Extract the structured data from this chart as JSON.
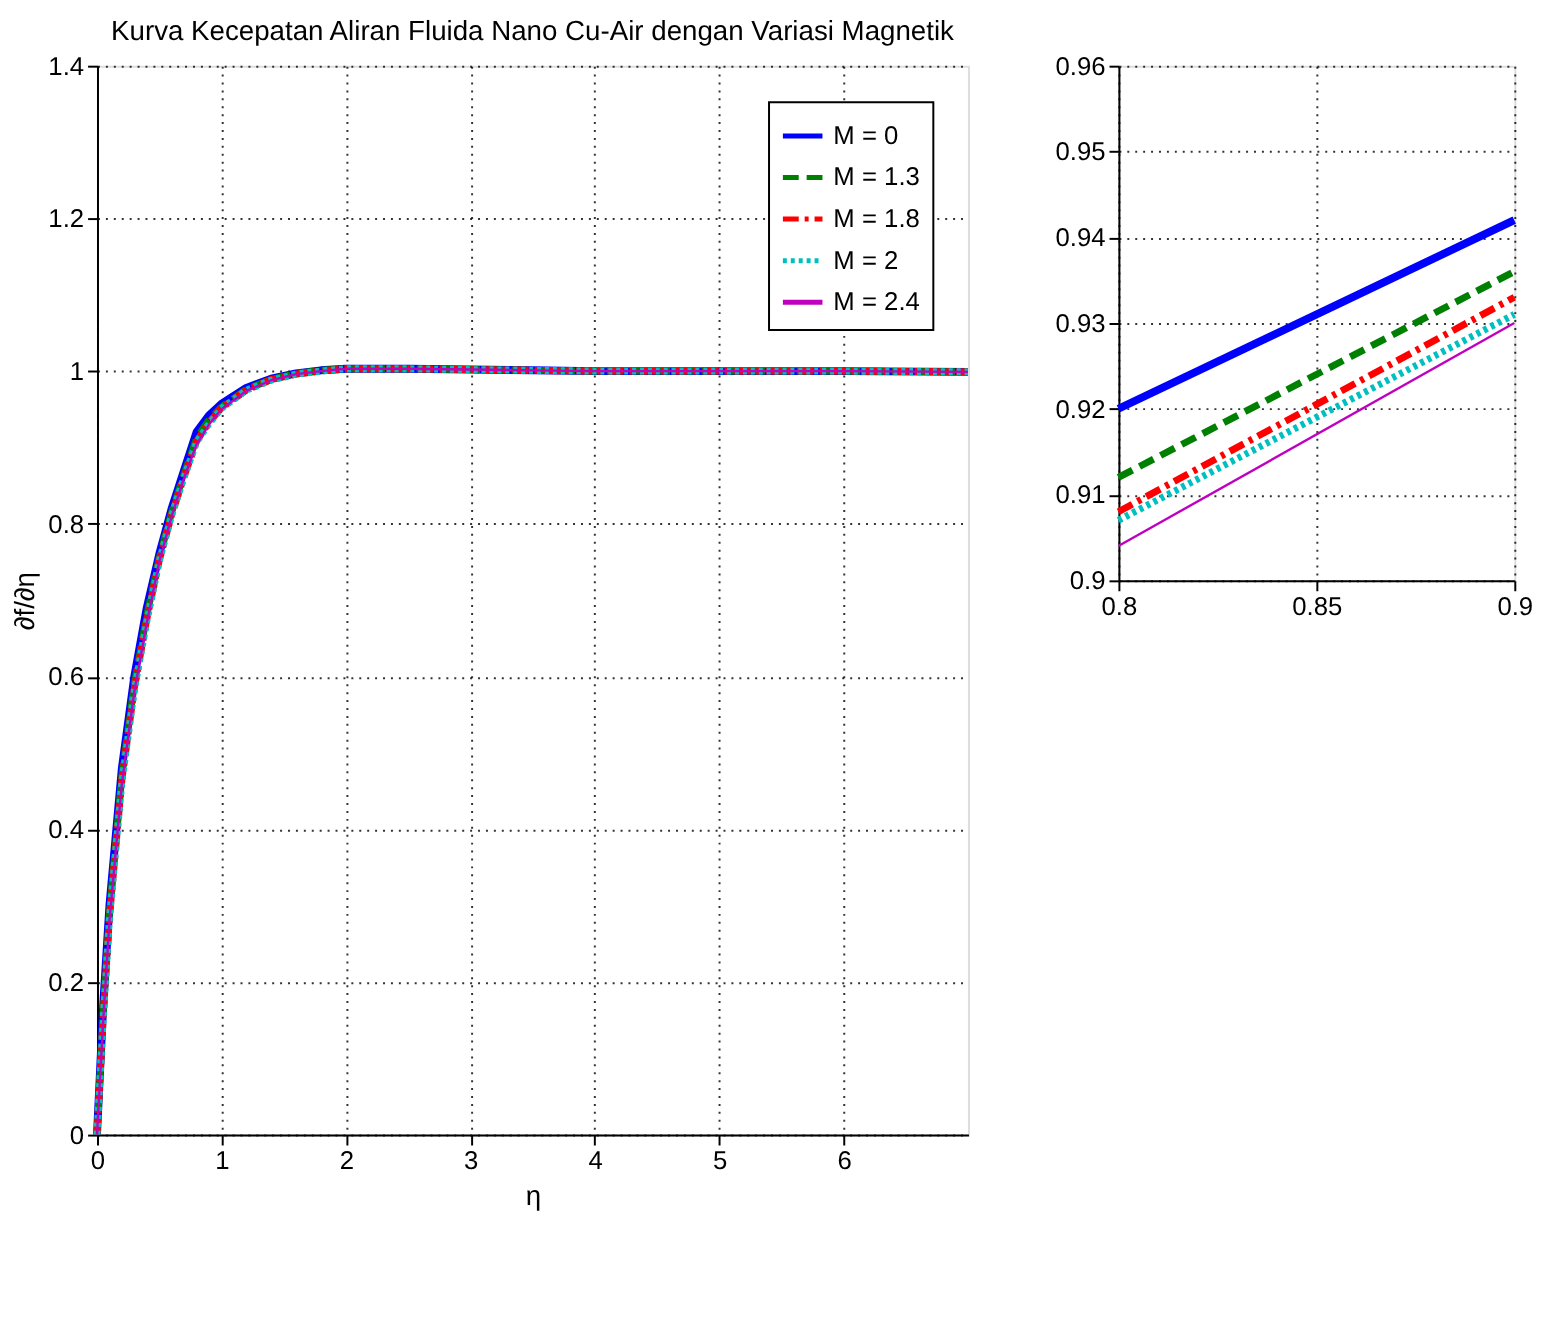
{
  "chart_data": [
    {
      "type": "line",
      "title": "Kurva Kecepatan Aliran Fluida Nano Cu-Air dengan Variasi Magnetik",
      "xlabel": "η",
      "ylabel": "∂f/∂η",
      "x": [
        0,
        0.05,
        0.1,
        0.2,
        0.3,
        0.4,
        0.5,
        0.6,
        0.7,
        0.8,
        0.9,
        1,
        1.2,
        1.4,
        1.6,
        1.8,
        2,
        2.5,
        3,
        3.5,
        4,
        5,
        6,
        7
      ],
      "xlim": [
        0,
        7
      ],
      "xticks": [
        0,
        1,
        2,
        3,
        4,
        5,
        6
      ],
      "ylim": [
        0,
        1.4
      ],
      "yticks": [
        0,
        0.2,
        0.4,
        0.6,
        0.8,
        1,
        1.2,
        1.4
      ],
      "grid": true,
      "legend": "top right",
      "series": [
        {
          "name": "M = 0",
          "color": "#0000ff",
          "line_style": "solid",
          "values": [
            0,
            0.17,
            0.3,
            0.48,
            0.6,
            0.69,
            0.76,
            0.82,
            0.87,
            0.92,
            0.942,
            0.957,
            0.978,
            0.99,
            0.997,
            1.001,
            1.003,
            1.003,
            1.002,
            1.001,
            1.0,
            1.0,
            1.0,
            0.999
          ]
        },
        {
          "name": "M = 1.3",
          "color": "#008000",
          "line_style": "dashed",
          "values": [
            0,
            0.16,
            0.29,
            0.47,
            0.59,
            0.68,
            0.755,
            0.815,
            0.865,
            0.912,
            0.936,
            0.953,
            0.976,
            0.989,
            0.997,
            1.001,
            1.003,
            1.003,
            1.002,
            1.001,
            1.0,
            1.0,
            1.0,
            0.999
          ]
        },
        {
          "name": "M = 1.8",
          "color": "#ff0000",
          "line_style": "dashdot",
          "values": [
            0,
            0.155,
            0.285,
            0.465,
            0.585,
            0.675,
            0.752,
            0.812,
            0.862,
            0.908,
            0.933,
            0.952,
            0.975,
            0.989,
            0.996,
            1.0,
            1.003,
            1.003,
            1.002,
            1.001,
            1.0,
            1.0,
            1.0,
            0.999
          ]
        },
        {
          "name": "M = 2",
          "color": "#00bfbf",
          "line_style": "dotted",
          "values": [
            0,
            0.152,
            0.283,
            0.462,
            0.582,
            0.672,
            0.751,
            0.811,
            0.861,
            0.907,
            0.931,
            0.951,
            0.975,
            0.988,
            0.996,
            1.0,
            1.003,
            1.003,
            1.002,
            1.001,
            1.0,
            1.0,
            1.0,
            0.999
          ]
        },
        {
          "name": "M = 2.4",
          "color": "#bf00bf",
          "line_style": "solid",
          "values": [
            0,
            0.15,
            0.28,
            0.46,
            0.58,
            0.67,
            0.75,
            0.81,
            0.86,
            0.904,
            0.93,
            0.95,
            0.974,
            0.988,
            0.996,
            1.0,
            1.003,
            1.003,
            1.002,
            1.001,
            1.0,
            1.0,
            1.0,
            0.999
          ]
        }
      ]
    },
    {
      "type": "line",
      "x": [
        0.8,
        0.9
      ],
      "xlim": [
        0.8,
        0.9
      ],
      "xticks": [
        0.8,
        0.85,
        0.9
      ],
      "ylim": [
        0.9,
        0.96
      ],
      "yticks": [
        0.9,
        0.91,
        0.92,
        0.93,
        0.94,
        0.95,
        0.96
      ],
      "grid": true,
      "series": [
        {
          "color": "#0000ff",
          "line_style": "solid",
          "values": [
            0.92,
            0.942
          ]
        },
        {
          "color": "#008000",
          "line_style": "dashed",
          "values": [
            0.912,
            0.936
          ]
        },
        {
          "color": "#ff0000",
          "line_style": "dashdot",
          "values": [
            0.908,
            0.933
          ]
        },
        {
          "color": "#00bfbf",
          "line_style": "dotted",
          "values": [
            0.907,
            0.931
          ]
        },
        {
          "color": "#bf00bf",
          "line_style": "solid",
          "values": [
            0.904,
            0.93
          ]
        }
      ]
    }
  ]
}
